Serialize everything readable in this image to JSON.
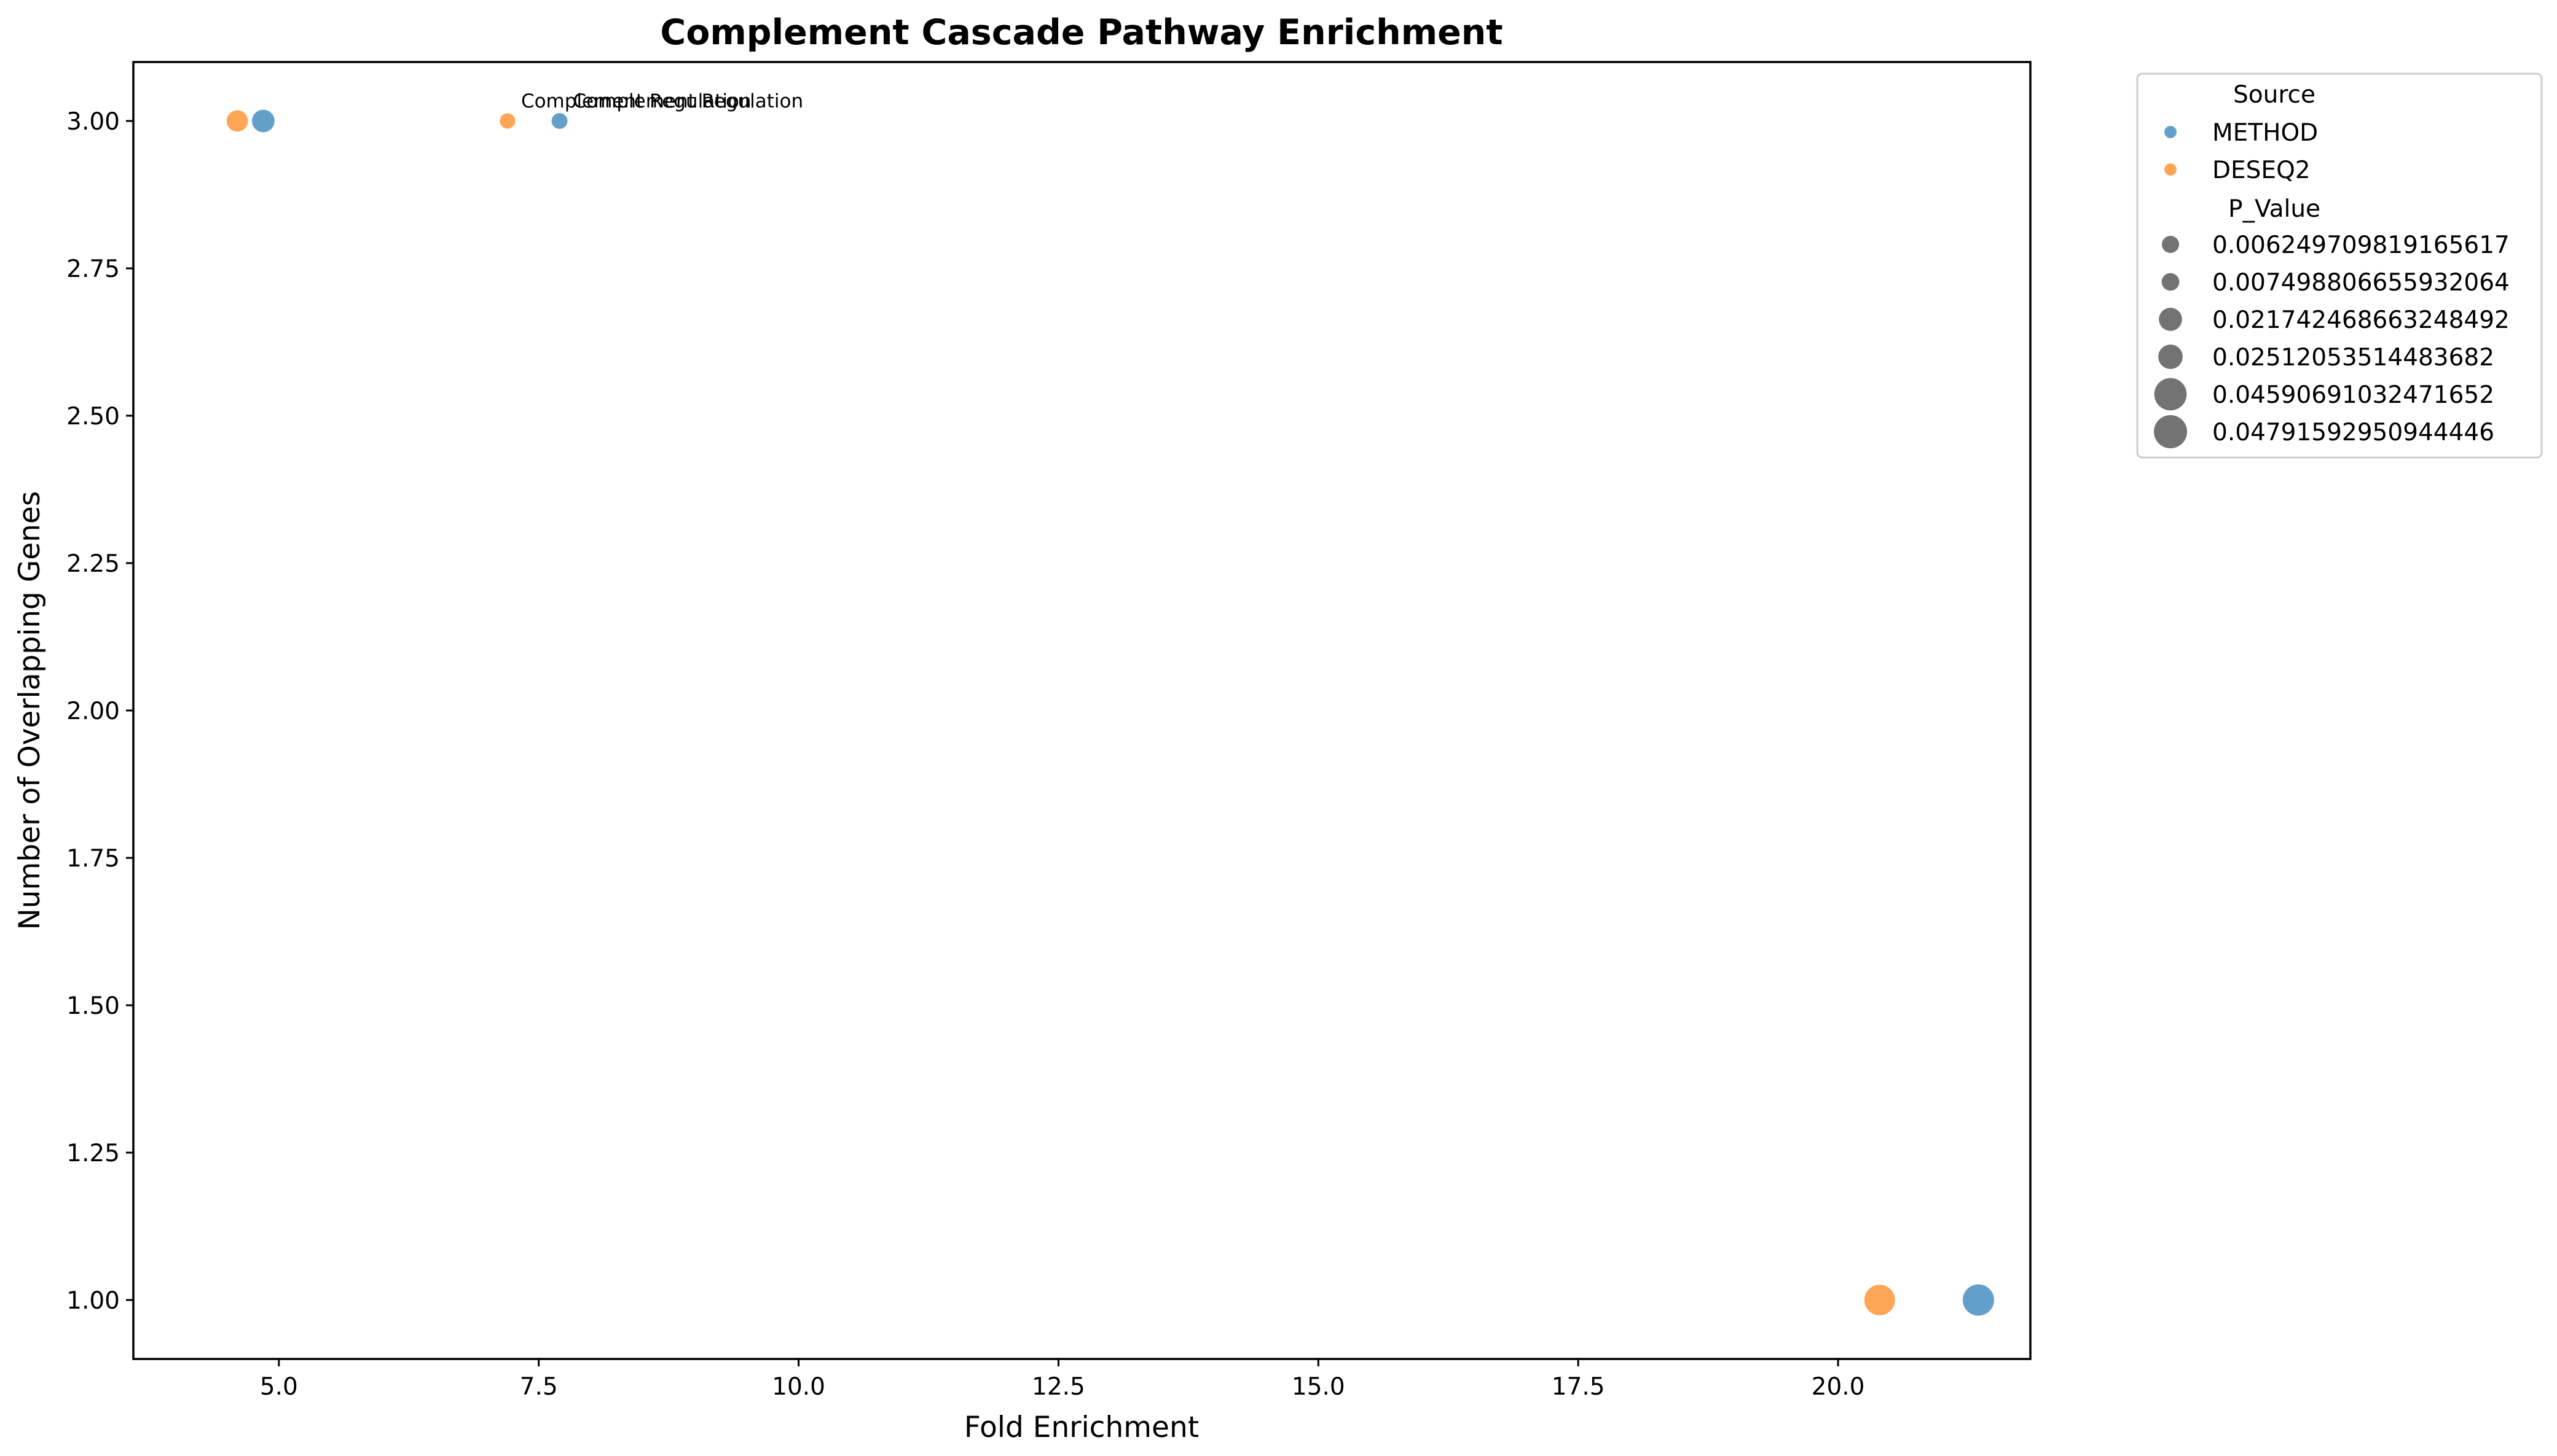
{
  "chart_data": {
    "type": "scatter",
    "title": "Complement Cascade Pathway Enrichment",
    "xlabel": "Fold Enrichment",
    "ylabel": "Number of Overlapping Genes",
    "xlim": [
      3.6,
      21.85
    ],
    "ylim": [
      0.9,
      3.1
    ],
    "xticks": [
      5.0,
      7.5,
      10.0,
      12.5,
      15.0,
      17.5,
      20.0
    ],
    "xtick_labels": [
      "5.0",
      "7.5",
      "10.0",
      "12.5",
      "15.0",
      "17.5",
      "20.0"
    ],
    "yticks": [
      1.0,
      1.25,
      1.5,
      1.75,
      2.0,
      2.25,
      2.5,
      2.75,
      3.0
    ],
    "ytick_labels": [
      "1.00",
      "1.25",
      "1.50",
      "1.75",
      "2.00",
      "2.25",
      "2.50",
      "2.75",
      "3.00"
    ],
    "grid": false,
    "legend_position": "outside-top-right",
    "colors": {
      "METHOD": "#1f77b4",
      "DESEQ2": "#ff7f0e"
    },
    "series": [
      {
        "name": "METHOD",
        "points": [
          {
            "x": 4.85,
            "y": 3.0,
            "p_value": 0.02512053514483682
          },
          {
            "x": 7.7,
            "y": 3.0,
            "p_value": 0.007498806655932064
          },
          {
            "x": 21.35,
            "y": 1.0,
            "p_value": 0.04791592950944446
          }
        ]
      },
      {
        "name": "DESEQ2",
        "points": [
          {
            "x": 4.6,
            "y": 3.0,
            "p_value": 0.021742468663248492
          },
          {
            "x": 7.2,
            "y": 3.0,
            "p_value": 0.006249709819165617
          },
          {
            "x": 20.4,
            "y": 1.0,
            "p_value": 0.04590691032471652
          }
        ]
      }
    ],
    "annotations": [
      {
        "text": "Complement Regulation",
        "x": 7.2,
        "y": 3.0
      },
      {
        "text": "Complement Regulation",
        "x": 7.7,
        "y": 3.0
      }
    ],
    "legend": {
      "hue_title": "Source",
      "hue_entries": [
        "METHOD",
        "DESEQ2"
      ],
      "size_title": "P_Value",
      "size_entries": [
        "0.006249709819165617",
        "0.007498806655932064",
        "0.021742468663248492",
        "0.02512053514483682",
        "0.04590691032471652",
        "0.04791592950944446"
      ]
    }
  }
}
